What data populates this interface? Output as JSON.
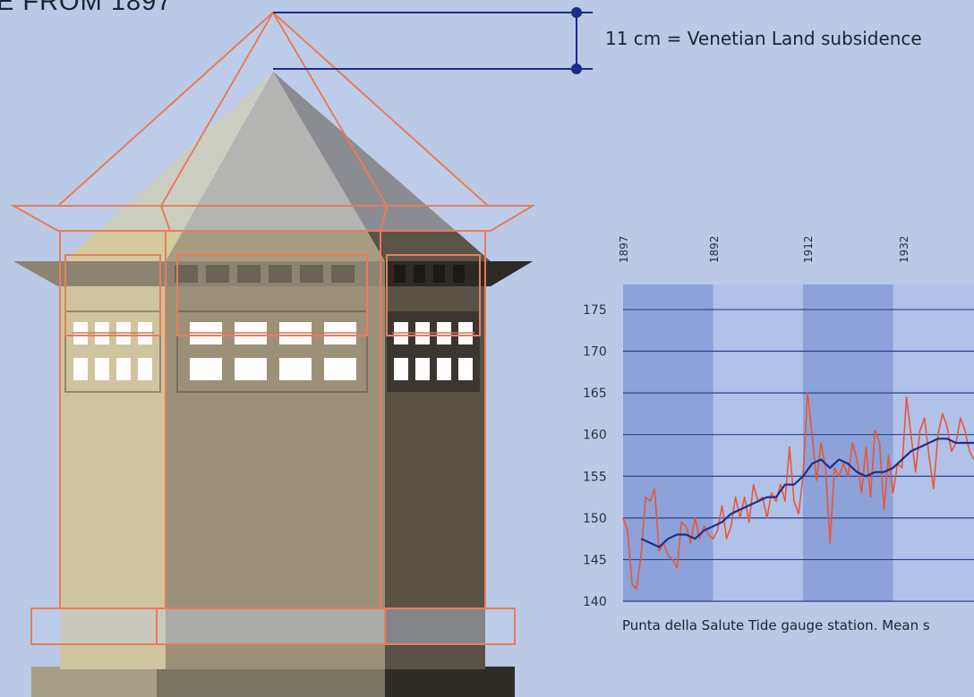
{
  "header": {
    "title": "E FROM 1897"
  },
  "annotation": {
    "subsidence_label": "11  cm = Venetian Land subsidence"
  },
  "chart_data": {
    "type": "line",
    "caption": "Punta della Salute Tide gauge station. Mean s",
    "x_tick_labels": [
      "1897",
      "1892",
      "1912",
      "1932"
    ],
    "y_ticks": [
      140,
      145,
      150,
      155,
      160,
      165,
      170,
      175
    ],
    "ylim": [
      140,
      178
    ],
    "xlim": [
      1872,
      1950
    ],
    "grid": true,
    "colors": {
      "annual_line": "#e8563a",
      "trend_line": "#1d2f8a",
      "band_dark": "#8ca2d8",
      "band_light": "#b1c2e8"
    },
    "series": [
      {
        "values": [
          [
            1872,
            150.0
          ],
          [
            1873,
            148.5
          ],
          [
            1874,
            142.0
          ],
          [
            1875,
            141.5
          ],
          [
            1876,
            145.5
          ],
          [
            1877,
            152.5
          ],
          [
            1878,
            152.0
          ],
          [
            1879,
            153.5
          ],
          [
            1880,
            146.0
          ],
          [
            1881,
            147.0
          ],
          [
            1882,
            145.5
          ],
          [
            1883,
            145.0
          ],
          [
            1884,
            144.0
          ],
          [
            1885,
            149.5
          ],
          [
            1886,
            149.0
          ],
          [
            1887,
            147.0
          ],
          [
            1888,
            150.0
          ],
          [
            1889,
            147.5
          ],
          [
            1890,
            149.0
          ],
          [
            1891,
            148.0
          ],
          [
            1892,
            147.5
          ],
          [
            1893,
            148.5
          ],
          [
            1894,
            151.5
          ],
          [
            1895,
            147.5
          ],
          [
            1896,
            149.0
          ],
          [
            1897,
            152.5
          ],
          [
            1898,
            150.0
          ],
          [
            1899,
            152.5
          ],
          [
            1900,
            149.5
          ],
          [
            1901,
            154.0
          ],
          [
            1902,
            152.0
          ],
          [
            1903,
            152.5
          ],
          [
            1904,
            150.0
          ],
          [
            1905,
            153.0
          ],
          [
            1906,
            152.0
          ],
          [
            1907,
            154.0
          ],
          [
            1908,
            152.0
          ],
          [
            1909,
            158.5
          ],
          [
            1910,
            152.0
          ],
          [
            1911,
            150.5
          ],
          [
            1912,
            155.0
          ],
          [
            1913,
            165.0
          ],
          [
            1914,
            160.0
          ],
          [
            1915,
            154.5
          ],
          [
            1916,
            159.0
          ],
          [
            1917,
            156.0
          ],
          [
            1918,
            147.0
          ],
          [
            1919,
            156.0
          ],
          [
            1920,
            155.0
          ],
          [
            1921,
            156.5
          ],
          [
            1922,
            155.0
          ],
          [
            1923,
            159.0
          ],
          [
            1924,
            157.0
          ],
          [
            1925,
            153.0
          ],
          [
            1926,
            158.5
          ],
          [
            1927,
            152.5
          ],
          [
            1928,
            160.5
          ],
          [
            1929,
            159.0
          ],
          [
            1930,
            151.0
          ],
          [
            1931,
            157.5
          ],
          [
            1932,
            153.0
          ],
          [
            1933,
            156.5
          ],
          [
            1934,
            156.0
          ],
          [
            1935,
            164.5
          ],
          [
            1936,
            160.0
          ],
          [
            1937,
            155.5
          ],
          [
            1938,
            160.5
          ],
          [
            1939,
            162.0
          ],
          [
            1940,
            157.5
          ],
          [
            1941,
            153.5
          ],
          [
            1942,
            160.0
          ],
          [
            1943,
            162.5
          ],
          [
            1944,
            161.0
          ],
          [
            1945,
            158.0
          ],
          [
            1946,
            159.0
          ],
          [
            1947,
            162.0
          ],
          [
            1948,
            160.5
          ],
          [
            1949,
            158.0
          ],
          [
            1950,
            157.0
          ]
        ]
      },
      {
        "values": [
          [
            1876,
            147.5
          ],
          [
            1878,
            147.0
          ],
          [
            1880,
            146.5
          ],
          [
            1882,
            147.5
          ],
          [
            1884,
            148.0
          ],
          [
            1886,
            148.0
          ],
          [
            1888,
            147.5
          ],
          [
            1890,
            148.5
          ],
          [
            1892,
            149.0
          ],
          [
            1894,
            149.5
          ],
          [
            1896,
            150.5
          ],
          [
            1898,
            151.0
          ],
          [
            1900,
            151.5
          ],
          [
            1902,
            152.0
          ],
          [
            1904,
            152.5
          ],
          [
            1906,
            152.5
          ],
          [
            1908,
            154.0
          ],
          [
            1910,
            154.0
          ],
          [
            1912,
            155.0
          ],
          [
            1914,
            156.5
          ],
          [
            1916,
            157.0
          ],
          [
            1918,
            156.0
          ],
          [
            1920,
            157.0
          ],
          [
            1922,
            156.5
          ],
          [
            1924,
            155.5
          ],
          [
            1926,
            155.0
          ],
          [
            1928,
            155.5
          ],
          [
            1930,
            155.5
          ],
          [
            1932,
            156.0
          ],
          [
            1934,
            157.0
          ],
          [
            1936,
            158.0
          ],
          [
            1938,
            158.5
          ],
          [
            1940,
            159.0
          ],
          [
            1942,
            159.5
          ],
          [
            1944,
            159.5
          ],
          [
            1946,
            159.0
          ],
          [
            1948,
            159.0
          ],
          [
            1950,
            159.0
          ]
        ]
      }
    ]
  }
}
